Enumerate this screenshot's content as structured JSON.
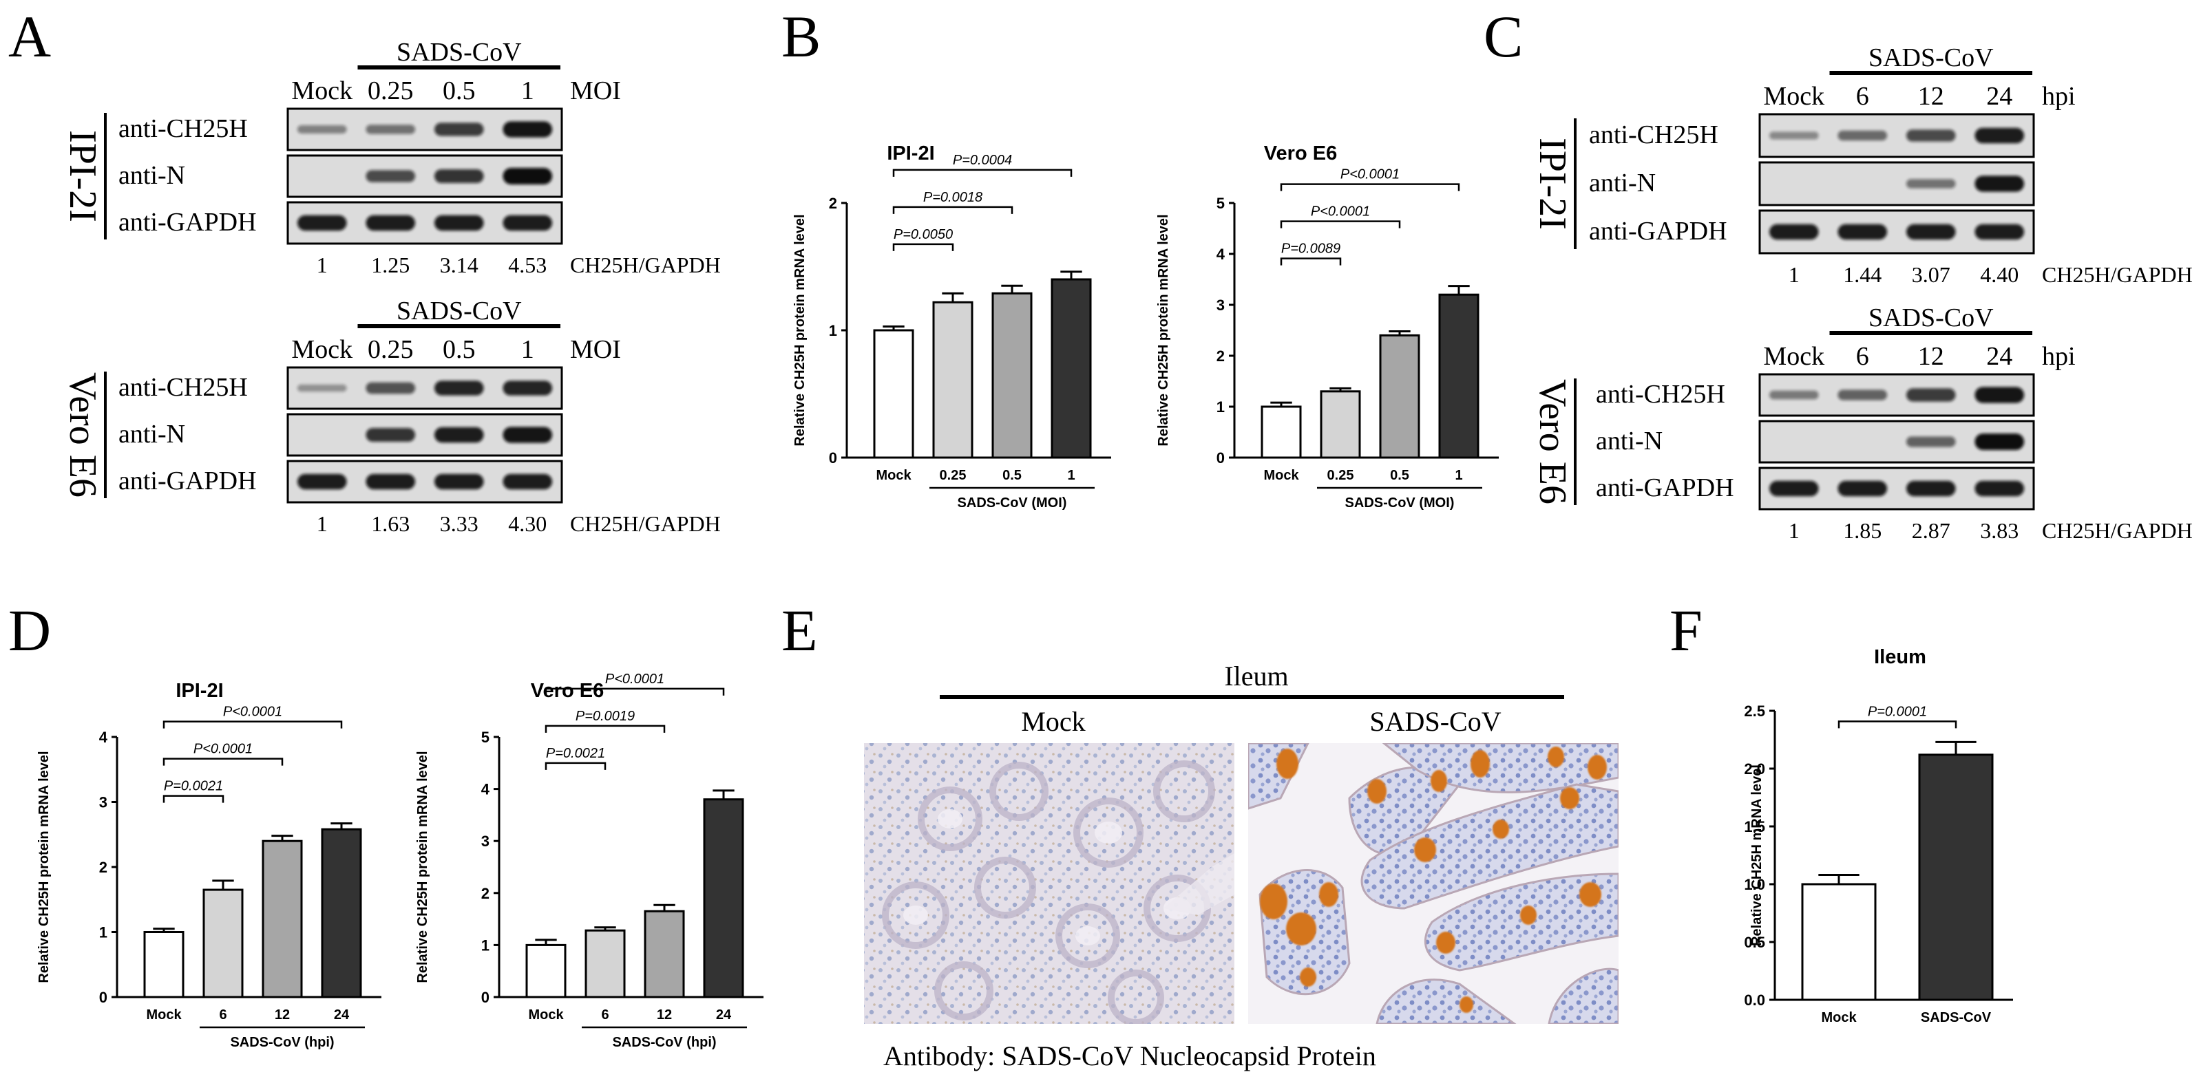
{
  "panels": {
    "A": {
      "letter": "A",
      "blots": [
        {
          "cell": "IPI-2I",
          "virus": "SADS-CoV",
          "unit": "MOI",
          "lanes": [
            "Mock",
            "0.25",
            "0.5",
            "1"
          ],
          "antibodies": [
            "anti-CH25H",
            "anti-N",
            "anti-GAPDH"
          ],
          "ratios": [
            "1",
            "1.25",
            "3.14",
            "4.53"
          ],
          "ratio_label": "CH25H/GAPDH",
          "band_levels": {
            "anti-CH25H": [
              0.25,
              0.35,
              0.7,
              0.95
            ],
            "anti-N": [
              0,
              0.6,
              0.75,
              1.0
            ],
            "anti-GAPDH": [
              0.9,
              0.9,
              0.9,
              0.9
            ]
          }
        },
        {
          "cell": "Vero E6",
          "virus": "SADS-CoV",
          "unit": "MOI",
          "lanes": [
            "Mock",
            "0.25",
            "0.5",
            "1"
          ],
          "antibodies": [
            "anti-CH25H",
            "anti-N",
            "anti-GAPDH"
          ],
          "ratios": [
            "1",
            "1.63",
            "3.33",
            "4.30"
          ],
          "ratio_label": "CH25H/GAPDH",
          "band_levels": {
            "anti-CH25H": [
              0.15,
              0.55,
              0.85,
              0.85
            ],
            "anti-N": [
              0,
              0.75,
              0.9,
              0.95
            ],
            "anti-GAPDH": [
              0.9,
              0.9,
              0.9,
              0.9
            ]
          }
        }
      ]
    },
    "C": {
      "letter": "C",
      "blots": [
        {
          "cell": "IPI-2I",
          "virus": "SADS-CoV",
          "unit": "hpi",
          "lanes": [
            "Mock",
            "6",
            "12",
            "24"
          ],
          "antibodies": [
            "anti-CH25H",
            "anti-N",
            "anti-GAPDH"
          ],
          "ratios": [
            "1",
            "1.44",
            "3.07",
            "4.40"
          ],
          "ratio_label": "CH25H/GAPDH",
          "band_levels": {
            "anti-CH25H": [
              0.2,
              0.4,
              0.6,
              0.9
            ],
            "anti-N": [
              0,
              0,
              0.35,
              0.95
            ],
            "anti-GAPDH": [
              0.9,
              0.9,
              0.9,
              0.9
            ]
          }
        },
        {
          "cell": "Vero E6",
          "virus": "SADS-CoV",
          "unit": "hpi",
          "lanes": [
            "Mock",
            "6",
            "12",
            "24"
          ],
          "antibodies": [
            "anti-CH25H",
            "anti-N",
            "anti-GAPDH"
          ],
          "ratios": [
            "1",
            "1.85",
            "2.87",
            "3.83"
          ],
          "ratio_label": "CH25H/GAPDH",
          "band_levels": {
            "anti-CH25H": [
              0.3,
              0.45,
              0.7,
              0.95
            ],
            "anti-N": [
              0,
              0,
              0.45,
              1.0
            ],
            "anti-GAPDH": [
              0.9,
              0.9,
              0.9,
              0.9
            ]
          }
        }
      ]
    },
    "E": {
      "letter": "E",
      "tissue": "Ileum",
      "groups": [
        "Mock",
        "SADS-CoV"
      ],
      "caption": "Antibody: SADS-CoV Nucleocapsid Protein"
    }
  },
  "chart_data": [
    {
      "panel": "B",
      "type": "bar",
      "title": "IPI-2I",
      "ylabel": "Relative CH25H protein mRNA level",
      "xgroup_label": "SADS-CoV (MOI)",
      "categories": [
        "Mock",
        "0.25",
        "0.5",
        "1"
      ],
      "values": [
        1.0,
        1.22,
        1.29,
        1.4
      ],
      "errors": [
        0.03,
        0.07,
        0.06,
        0.06
      ],
      "bar_colors": [
        "#ffffff",
        "#d4d4d4",
        "#a6a6a6",
        "#333333"
      ],
      "ylim": [
        0,
        2
      ],
      "yticks": [
        "0",
        "1",
        "2"
      ],
      "significance": [
        {
          "from": 0,
          "to": 1,
          "label": "P=0.0050"
        },
        {
          "from": 0,
          "to": 2,
          "label": "P=0.0018"
        },
        {
          "from": 0,
          "to": 3,
          "label": "P=0.0004"
        }
      ]
    },
    {
      "panel": "B",
      "type": "bar",
      "title": "Vero E6",
      "ylabel": "Relative CH25H protein mRNA level",
      "xgroup_label": "SADS-CoV (MOI)",
      "categories": [
        "Mock",
        "0.25",
        "0.5",
        "1"
      ],
      "values": [
        1.0,
        1.3,
        2.4,
        3.2
      ],
      "errors": [
        0.08,
        0.06,
        0.08,
        0.17
      ],
      "bar_colors": [
        "#ffffff",
        "#d4d4d4",
        "#a6a6a6",
        "#333333"
      ],
      "ylim": [
        0,
        5
      ],
      "yticks": [
        "0",
        "1",
        "2",
        "3",
        "4",
        "5"
      ],
      "significance": [
        {
          "from": 0,
          "to": 1,
          "label": "P=0.0089"
        },
        {
          "from": 0,
          "to": 2,
          "label": "P<0.0001"
        },
        {
          "from": 0,
          "to": 3,
          "label": "P<0.0001"
        }
      ]
    },
    {
      "panel": "D",
      "type": "bar",
      "title": "IPI-2I",
      "ylabel": "Relative CH25H protein mRNA level",
      "xgroup_label": "SADS-CoV (hpi)",
      "categories": [
        "Mock",
        "6",
        "12",
        "24"
      ],
      "values": [
        1.0,
        1.65,
        2.4,
        2.58
      ],
      "errors": [
        0.05,
        0.14,
        0.08,
        0.09
      ],
      "bar_colors": [
        "#ffffff",
        "#d4d4d4",
        "#a6a6a6",
        "#333333"
      ],
      "ylim": [
        0,
        4
      ],
      "yticks": [
        "0",
        "1",
        "2",
        "3",
        "4"
      ],
      "significance": [
        {
          "from": 0,
          "to": 1,
          "label": "P=0.0021"
        },
        {
          "from": 0,
          "to": 2,
          "label": "P<0.0001"
        },
        {
          "from": 0,
          "to": 3,
          "label": "P<0.0001"
        }
      ]
    },
    {
      "panel": "D",
      "type": "bar",
      "title": "Vero E6",
      "ylabel": "Relative CH25H protein mRNA level",
      "xgroup_label": "SADS-CoV (hpi)",
      "categories": [
        "Mock",
        "6",
        "12",
        "24"
      ],
      "values": [
        1.0,
        1.28,
        1.65,
        3.8
      ],
      "errors": [
        0.1,
        0.06,
        0.12,
        0.17
      ],
      "bar_colors": [
        "#ffffff",
        "#d4d4d4",
        "#a6a6a6",
        "#333333"
      ],
      "ylim": [
        0,
        5
      ],
      "yticks": [
        "0",
        "1",
        "2",
        "3",
        "4",
        "5"
      ],
      "significance": [
        {
          "from": 0,
          "to": 1,
          "label": "P=0.0021"
        },
        {
          "from": 0,
          "to": 2,
          "label": "P=0.0019"
        },
        {
          "from": 0,
          "to": 3,
          "label": "P<0.0001"
        }
      ]
    },
    {
      "panel": "F",
      "type": "bar",
      "title": "Ileum",
      "ylabel": "Relative CH25H mRNA level",
      "xgroup_label": "",
      "categories": [
        "Mock",
        "SADS-CoV"
      ],
      "values": [
        1.0,
        2.12
      ],
      "errors": [
        0.08,
        0.11
      ],
      "bar_colors": [
        "#ffffff",
        "#333333"
      ],
      "ylim": [
        0,
        2.5
      ],
      "yticks": [
        "0.0",
        "0.5",
        "1.0",
        "1.5",
        "2.0",
        "2.5"
      ],
      "significance": [
        {
          "from": 0,
          "to": 1,
          "label": "P=0.0001"
        }
      ]
    }
  ]
}
